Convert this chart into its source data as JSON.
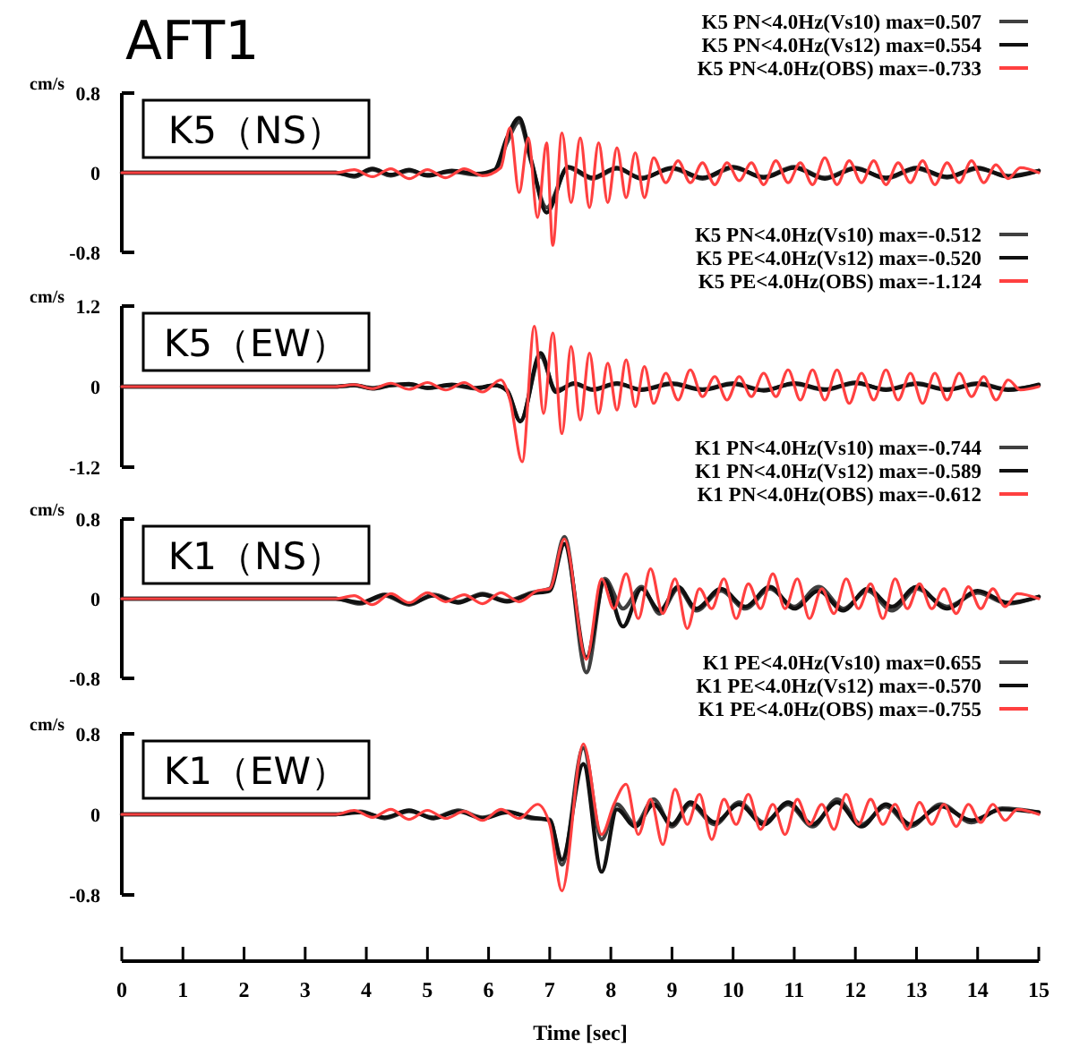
{
  "chart_data": [
    {
      "type": "line",
      "title": "AFT1",
      "ylabel": "cm/s",
      "annotations": [
        "K5（NS）"
      ],
      "legend": "top right",
      "xlim": [
        0,
        15
      ],
      "ylim": [
        -0.8,
        0.8
      ],
      "yticks": [
        -0.8,
        0,
        0.8
      ],
      "tick_labels": "y",
      "series": [
        {
          "name": "K5 PN<4.0Hz(Vs10) max=0.507",
          "color": "#404040",
          "x": [
            0,
            3.5,
            3.8,
            4.1,
            4.4,
            4.7,
            5.0,
            5.4,
            5.8,
            6.1,
            6.3,
            6.5,
            6.7,
            6.95,
            7.3,
            7.7,
            8.1,
            8.5,
            9.0,
            9.5,
            10.0,
            10.5,
            11.0,
            11.5,
            12.0,
            12.5,
            13.0,
            13.5,
            14.0,
            14.5,
            15
          ],
          "values": [
            0,
            0,
            -0.04,
            0.03,
            -0.03,
            0.02,
            -0.02,
            0.01,
            -0.02,
            0.02,
            0.3,
            0.51,
            0.1,
            -0.35,
            0.05,
            -0.06,
            0.04,
            -0.05,
            0.04,
            -0.06,
            0.05,
            -0.04,
            0.06,
            -0.05,
            0.05,
            -0.06,
            0.04,
            -0.05,
            0.04,
            -0.03,
            0.02
          ]
        },
        {
          "name": "K5 PN<4.0Hz(Vs12) max=0.554",
          "color": "#111111",
          "x": [
            0,
            3.5,
            3.8,
            4.1,
            4.4,
            4.7,
            5.0,
            5.4,
            5.8,
            6.1,
            6.3,
            6.5,
            6.7,
            6.95,
            7.3,
            7.7,
            8.1,
            8.5,
            9.0,
            9.5,
            10.0,
            10.5,
            11.0,
            11.5,
            12.0,
            12.5,
            13.0,
            13.5,
            14.0,
            14.5,
            15
          ],
          "values": [
            0,
            0,
            -0.03,
            0.04,
            -0.02,
            0.03,
            -0.03,
            0.02,
            -0.01,
            0.03,
            0.35,
            0.55,
            0.12,
            -0.4,
            0.06,
            -0.05,
            0.05,
            -0.06,
            0.05,
            -0.05,
            0.06,
            -0.05,
            0.05,
            -0.06,
            0.04,
            -0.05,
            0.05,
            -0.04,
            0.05,
            -0.04,
            0.02
          ]
        },
        {
          "name": "K5 PN<4.0Hz(OBS) max=-0.733",
          "color": "#ff4040",
          "x": [
            0,
            3.5,
            3.8,
            4.1,
            4.4,
            4.7,
            5.0,
            5.3,
            5.6,
            5.9,
            6.2,
            6.35,
            6.5,
            6.65,
            6.8,
            6.95,
            7.05,
            7.2,
            7.35,
            7.5,
            7.65,
            7.8,
            7.95,
            8.1,
            8.25,
            8.4,
            8.55,
            8.7,
            8.9,
            9.1,
            9.3,
            9.5,
            9.7,
            9.9,
            10.1,
            10.3,
            10.5,
            10.7,
            10.9,
            11.1,
            11.3,
            11.5,
            11.7,
            11.9,
            12.1,
            12.3,
            12.5,
            12.7,
            12.9,
            13.1,
            13.3,
            13.5,
            13.7,
            13.9,
            14.1,
            14.3,
            14.5,
            14.7,
            15
          ],
          "values": [
            0,
            0,
            0.03,
            -0.04,
            0.04,
            -0.06,
            0.03,
            -0.05,
            0.04,
            -0.03,
            0.05,
            0.45,
            -0.2,
            0.35,
            -0.45,
            0.3,
            -0.73,
            0.4,
            -0.3,
            0.35,
            -0.35,
            0.3,
            -0.3,
            0.25,
            -0.25,
            0.2,
            -0.25,
            0.15,
            -0.1,
            0.12,
            -0.1,
            0.1,
            -0.12,
            0.1,
            -0.08,
            0.1,
            -0.12,
            0.12,
            -0.1,
            0.1,
            -0.12,
            0.15,
            -0.12,
            0.12,
            -0.1,
            0.12,
            -0.12,
            0.1,
            -0.1,
            0.12,
            -0.12,
            0.1,
            -0.1,
            0.12,
            -0.1,
            0.08,
            -0.06,
            0.05,
            0
          ]
        }
      ]
    },
    {
      "type": "line",
      "ylabel": "cm/s",
      "annotations": [
        "K5（EW）"
      ],
      "legend": "top right",
      "xlim": [
        0,
        15
      ],
      "ylim": [
        -1.2,
        1.2
      ],
      "yticks": [
        -1.2,
        0,
        1.2
      ],
      "tick_labels": "y",
      "series": [
        {
          "name": "K5 PN<4.0Hz(Vs10) max=-0.512",
          "color": "#404040",
          "x": [
            0,
            3.5,
            3.8,
            4.1,
            4.4,
            4.7,
            5.0,
            5.4,
            5.8,
            6.1,
            6.3,
            6.52,
            6.85,
            7.1,
            7.4,
            7.7,
            8.1,
            8.5,
            9.0,
            9.5,
            10.0,
            10.5,
            11.0,
            11.5,
            12.0,
            12.5,
            13.0,
            13.5,
            14.0,
            14.5,
            15
          ],
          "values": [
            0,
            0,
            0.02,
            -0.02,
            0.02,
            0.03,
            -0.02,
            0.02,
            -0.03,
            0.02,
            -0.05,
            -0.51,
            0.45,
            -0.05,
            0.04,
            -0.05,
            0.04,
            -0.04,
            0.05,
            -0.04,
            0.05,
            -0.05,
            0.04,
            -0.05,
            0.05,
            -0.04,
            0.05,
            -0.04,
            0.05,
            -0.04,
            0.02
          ]
        },
        {
          "name": "K5 PE<4.0Hz(Vs12) max=-0.520",
          "color": "#111111",
          "x": [
            0,
            3.5,
            3.8,
            4.1,
            4.4,
            4.7,
            5.0,
            5.4,
            5.8,
            6.1,
            6.3,
            6.52,
            6.85,
            7.1,
            7.4,
            7.7,
            8.1,
            8.5,
            9.0,
            9.5,
            10.0,
            10.5,
            11.0,
            11.5,
            12.0,
            12.5,
            13.0,
            13.5,
            14.0,
            14.5,
            15
          ],
          "values": [
            0,
            0,
            0.02,
            -0.03,
            0.02,
            0.04,
            -0.02,
            0.03,
            -0.02,
            0.02,
            -0.06,
            -0.52,
            0.5,
            -0.08,
            0.05,
            -0.04,
            0.05,
            -0.05,
            0.04,
            -0.05,
            0.04,
            -0.06,
            0.05,
            -0.04,
            0.06,
            -0.05,
            0.04,
            -0.05,
            0.04,
            -0.05,
            0.03
          ]
        },
        {
          "name": "K5 PE<4.0Hz(OBS) max=-1.124",
          "color": "#ff4040",
          "x": [
            0,
            3.5,
            3.8,
            4.1,
            4.4,
            4.7,
            5.0,
            5.3,
            5.6,
            5.9,
            6.2,
            6.35,
            6.55,
            6.75,
            6.9,
            7.05,
            7.2,
            7.35,
            7.5,
            7.65,
            7.8,
            7.95,
            8.1,
            8.25,
            8.4,
            8.55,
            8.7,
            8.9,
            9.1,
            9.3,
            9.5,
            9.7,
            9.9,
            10.1,
            10.3,
            10.5,
            10.7,
            10.9,
            11.1,
            11.3,
            11.5,
            11.7,
            11.9,
            12.1,
            12.3,
            12.5,
            12.7,
            12.9,
            13.1,
            13.3,
            13.5,
            13.7,
            13.9,
            14.1,
            14.3,
            14.5,
            14.7,
            15
          ],
          "values": [
            0,
            0,
            0.03,
            -0.03,
            0.05,
            -0.04,
            0.06,
            -0.05,
            0.06,
            -0.08,
            0.1,
            -0.2,
            -1.12,
            0.9,
            -0.4,
            0.8,
            -0.7,
            0.6,
            -0.5,
            0.5,
            -0.4,
            0.35,
            -0.35,
            0.4,
            -0.3,
            0.3,
            -0.25,
            0.2,
            -0.2,
            0.25,
            -0.15,
            0.15,
            -0.2,
            0.15,
            -0.15,
            0.2,
            -0.15,
            0.25,
            -0.2,
            0.25,
            -0.2,
            0.25,
            -0.25,
            0.2,
            -0.2,
            0.25,
            -0.2,
            0.2,
            -0.25,
            0.2,
            -0.2,
            0.2,
            -0.15,
            0.15,
            -0.2,
            0.1,
            -0.05,
            0
          ]
        }
      ]
    },
    {
      "type": "line",
      "ylabel": "cm/s",
      "annotations": [
        "K1（NS）"
      ],
      "legend": "top right",
      "xlim": [
        0,
        15
      ],
      "ylim": [
        -0.8,
        0.8
      ],
      "yticks": [
        -0.8,
        0,
        0.8
      ],
      "tick_labels": "y",
      "series": [
        {
          "name": "K1 PN<4.0Hz(Vs10) max=-0.744",
          "color": "#404040",
          "x": [
            0,
            3.5,
            3.9,
            4.3,
            4.7,
            5.1,
            5.5,
            5.9,
            6.3,
            6.7,
            7.0,
            7.24,
            7.6,
            7.9,
            8.2,
            8.5,
            8.8,
            9.1,
            9.4,
            9.8,
            10.2,
            10.6,
            11.0,
            11.4,
            11.8,
            12.2,
            12.6,
            13.0,
            13.5,
            14.0,
            14.5,
            15
          ],
          "values": [
            0,
            0,
            -0.05,
            0.03,
            -0.06,
            0.04,
            -0.03,
            0.05,
            -0.02,
            0.06,
            0.1,
            0.62,
            -0.74,
            0.2,
            -0.1,
            0.12,
            -0.15,
            0.1,
            -0.12,
            0.08,
            -0.1,
            0.1,
            -0.08,
            0.12,
            -0.1,
            0.08,
            -0.12,
            0.1,
            -0.08,
            0.06,
            -0.05,
            0.02
          ]
        },
        {
          "name": "K1 PN<4.0Hz(Vs12) max=-0.589",
          "color": "#111111",
          "x": [
            0,
            3.5,
            3.9,
            4.3,
            4.7,
            5.1,
            5.5,
            5.9,
            6.3,
            6.7,
            7.0,
            7.24,
            7.6,
            7.9,
            8.2,
            8.5,
            8.8,
            9.1,
            9.4,
            9.8,
            10.2,
            10.6,
            11.0,
            11.4,
            11.8,
            12.2,
            12.6,
            13.0,
            13.5,
            14.0,
            14.5,
            15
          ],
          "values": [
            0,
            0,
            -0.04,
            0.04,
            -0.05,
            0.03,
            -0.04,
            0.04,
            -0.03,
            0.05,
            0.08,
            0.55,
            -0.59,
            0.18,
            -0.28,
            0.1,
            -0.12,
            0.12,
            -0.1,
            0.1,
            -0.08,
            0.12,
            -0.1,
            0.08,
            -0.12,
            0.1,
            -0.08,
            0.12,
            -0.1,
            0.08,
            -0.04,
            0.02
          ]
        },
        {
          "name": "K1 PN<4.0Hz(OBS) max=-0.612",
          "color": "#ff4040",
          "x": [
            0,
            3.5,
            3.8,
            4.1,
            4.4,
            4.7,
            5.0,
            5.3,
            5.6,
            5.9,
            6.2,
            6.5,
            6.8,
            7.0,
            7.24,
            7.6,
            7.85,
            8.05,
            8.25,
            8.45,
            8.65,
            8.85,
            9.05,
            9.25,
            9.45,
            9.65,
            9.85,
            10.05,
            10.25,
            10.45,
            10.65,
            10.85,
            11.05,
            11.25,
            11.45,
            11.65,
            11.85,
            12.05,
            12.25,
            12.45,
            12.65,
            12.85,
            13.05,
            13.25,
            13.45,
            13.65,
            13.85,
            14.05,
            14.25,
            14.45,
            14.65,
            15
          ],
          "values": [
            0,
            0,
            0.03,
            -0.06,
            0.05,
            -0.04,
            0.06,
            -0.03,
            0.04,
            -0.05,
            0.06,
            -0.03,
            0.08,
            0.1,
            0.6,
            -0.61,
            0.2,
            -0.1,
            0.25,
            -0.2,
            0.3,
            -0.15,
            0.2,
            -0.3,
            0.1,
            -0.1,
            0.2,
            -0.2,
            0.15,
            -0.1,
            0.25,
            -0.1,
            0.2,
            -0.2,
            0.1,
            -0.15,
            0.2,
            -0.1,
            0.15,
            -0.2,
            0.2,
            -0.1,
            0.15,
            -0.1,
            0.1,
            -0.15,
            0.12,
            -0.1,
            0.1,
            -0.08,
            0.05,
            0
          ]
        }
      ]
    },
    {
      "type": "line",
      "ylabel": "cm/s",
      "xlabel": "Time [sec]",
      "annotations": [
        "K1（EW）"
      ],
      "legend": "top right",
      "xlim": [
        0,
        15
      ],
      "ylim": [
        -0.8,
        0.8
      ],
      "yticks": [
        -0.8,
        0,
        0.8
      ],
      "xticks": [
        0,
        1,
        2,
        3,
        4,
        5,
        6,
        7,
        8,
        9,
        10,
        11,
        12,
        13,
        14,
        15
      ],
      "series": [
        {
          "name": "K1 PE<4.0Hz(Vs10) max=0.655",
          "color": "#404040",
          "x": [
            0,
            3.5,
            3.9,
            4.3,
            4.7,
            5.1,
            5.5,
            5.9,
            6.3,
            6.7,
            7.0,
            7.2,
            7.55,
            7.85,
            8.1,
            8.4,
            8.7,
            9.0,
            9.3,
            9.7,
            10.1,
            10.5,
            10.9,
            11.3,
            11.7,
            12.1,
            12.5,
            12.9,
            13.4,
            13.9,
            14.4,
            15
          ],
          "values": [
            0,
            0,
            0.03,
            -0.04,
            0.03,
            -0.03,
            0.04,
            -0.03,
            0.03,
            -0.04,
            -0.05,
            -0.5,
            0.66,
            -0.25,
            0.1,
            -0.1,
            0.15,
            -0.12,
            0.1,
            -0.1,
            0.12,
            -0.08,
            0.1,
            -0.12,
            0.15,
            -0.1,
            0.08,
            -0.12,
            0.1,
            -0.08,
            0.06,
            0.02
          ]
        },
        {
          "name": "K1 PE<4.0Hz(Vs12) max=-0.570",
          "color": "#111111",
          "x": [
            0,
            3.5,
            3.9,
            4.3,
            4.7,
            5.1,
            5.5,
            5.9,
            6.3,
            6.7,
            7.0,
            7.2,
            7.55,
            7.85,
            8.1,
            8.4,
            8.7,
            9.0,
            9.3,
            9.7,
            10.1,
            10.5,
            10.9,
            11.3,
            11.7,
            12.1,
            12.5,
            12.9,
            13.4,
            13.9,
            14.4,
            15
          ],
          "values": [
            0,
            0,
            0.02,
            -0.03,
            0.04,
            -0.04,
            0.03,
            -0.04,
            0.02,
            -0.03,
            -0.06,
            -0.45,
            0.5,
            -0.57,
            0.05,
            -0.12,
            0.1,
            -0.1,
            0.12,
            -0.08,
            0.1,
            -0.1,
            0.12,
            -0.1,
            0.12,
            -0.12,
            0.1,
            -0.1,
            0.08,
            -0.06,
            0.05,
            0.02
          ]
        },
        {
          "name": "K1 PE<4.0Hz(OBS) max=-0.755",
          "color": "#ff4040",
          "x": [
            0,
            3.5,
            3.8,
            4.1,
            4.4,
            4.7,
            5.0,
            5.3,
            5.6,
            5.9,
            6.2,
            6.5,
            6.8,
            7.0,
            7.2,
            7.55,
            7.85,
            8.05,
            8.25,
            8.45,
            8.65,
            8.85,
            9.05,
            9.25,
            9.45,
            9.65,
            9.85,
            10.05,
            10.25,
            10.45,
            10.65,
            10.85,
            11.05,
            11.25,
            11.45,
            11.65,
            11.85,
            12.05,
            12.25,
            12.45,
            12.65,
            12.85,
            13.05,
            13.25,
            13.45,
            13.65,
            13.85,
            14.05,
            14.25,
            14.45,
            14.65,
            15
          ],
          "values": [
            0,
            0,
            0.04,
            -0.03,
            0.05,
            -0.05,
            0.04,
            -0.04,
            0.03,
            -0.06,
            0.05,
            -0.04,
            0.1,
            -0.1,
            -0.76,
            0.7,
            -0.2,
            0.1,
            0.3,
            -0.2,
            0.15,
            -0.3,
            0.25,
            -0.1,
            0.2,
            -0.25,
            0.15,
            -0.1,
            0.2,
            -0.15,
            0.1,
            -0.2,
            0.15,
            -0.1,
            0.1,
            -0.15,
            0.2,
            -0.1,
            0.15,
            -0.1,
            0.1,
            -0.15,
            0.12,
            -0.1,
            0.1,
            -0.12,
            0.1,
            -0.08,
            0.1,
            -0.06,
            0.05,
            0
          ]
        }
      ]
    }
  ]
}
